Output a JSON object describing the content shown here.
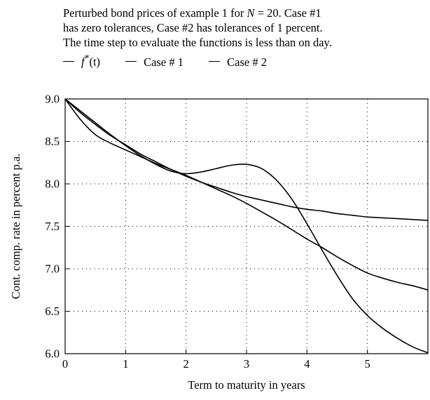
{
  "caption": {
    "line1_pre": "Perturbed bond prices of example 1 for ",
    "line1_var": "N",
    "line1_post": " = 20. Case #1",
    "line2": "has zero tolerances, Case #2 has tolerances of 1 percent.",
    "line3": "The time step to evaluate the functions is less than on day."
  },
  "legend": {
    "f_label": "f",
    "f_sup": "*",
    "f_arg": "(t)",
    "case1": "Case # 1",
    "case2": "Case # 2"
  },
  "chart_data": {
    "type": "line",
    "xlabel": "Term to maturity in years",
    "ylabel": "Cont. comp. rate in percent p.a.",
    "xlim": [
      0,
      6
    ],
    "ylim": [
      6.0,
      9.0
    ],
    "x_ticks": [
      "0",
      "1",
      "2",
      "3",
      "4",
      "5"
    ],
    "y_ticks": [
      "6.0",
      "6.5",
      "7.0",
      "7.5",
      "8.0",
      "8.5",
      "9.0"
    ],
    "grid": "dotted",
    "color": "#000000",
    "series": [
      {
        "name": "f*(t)",
        "x": [
          0,
          0.25,
          0.5,
          0.75,
          1.0,
          1.25,
          1.5,
          1.75,
          2.0,
          2.25,
          2.5,
          2.75,
          3.0,
          3.25,
          3.5,
          3.75,
          4.0,
          4.25,
          4.5,
          4.75,
          5.0,
          5.25,
          5.5,
          5.75,
          6.0
        ],
        "y": [
          9.0,
          8.84,
          8.7,
          8.57,
          8.46,
          8.35,
          8.26,
          8.17,
          8.09,
          8.02,
          7.96,
          7.9,
          7.85,
          7.81,
          7.77,
          7.73,
          7.7,
          7.68,
          7.65,
          7.63,
          7.61,
          7.6,
          7.59,
          7.58,
          7.57
        ]
      },
      {
        "name": "Case # 1",
        "x": [
          0,
          0.25,
          0.5,
          0.75,
          1.0,
          1.25,
          1.5,
          1.75,
          2.0,
          2.25,
          2.5,
          2.75,
          3.0,
          3.25,
          3.5,
          3.75,
          4.0,
          4.25,
          4.5,
          4.75,
          5.0,
          5.25,
          5.5,
          5.75,
          6.0
        ],
        "y": [
          9.0,
          8.86,
          8.72,
          8.58,
          8.45,
          8.33,
          8.23,
          8.15,
          8.12,
          8.14,
          8.18,
          8.22,
          8.23,
          8.18,
          8.04,
          7.82,
          7.53,
          7.22,
          6.92,
          6.65,
          6.45,
          6.3,
          6.18,
          6.08,
          6.01
        ]
      },
      {
        "name": "Case # 2",
        "x": [
          0,
          0.25,
          0.5,
          0.75,
          1.0,
          1.25,
          1.5,
          1.75,
          2.0,
          2.25,
          2.5,
          2.75,
          3.0,
          3.25,
          3.5,
          3.75,
          4.0,
          4.25,
          4.5,
          4.75,
          5.0,
          5.25,
          5.5,
          5.75,
          6.0
        ],
        "y": [
          9.0,
          8.76,
          8.58,
          8.48,
          8.4,
          8.32,
          8.24,
          8.17,
          8.1,
          8.02,
          7.94,
          7.86,
          7.77,
          7.67,
          7.57,
          7.46,
          7.35,
          7.25,
          7.14,
          7.04,
          6.95,
          6.89,
          6.84,
          6.8,
          6.75
        ]
      }
    ]
  }
}
